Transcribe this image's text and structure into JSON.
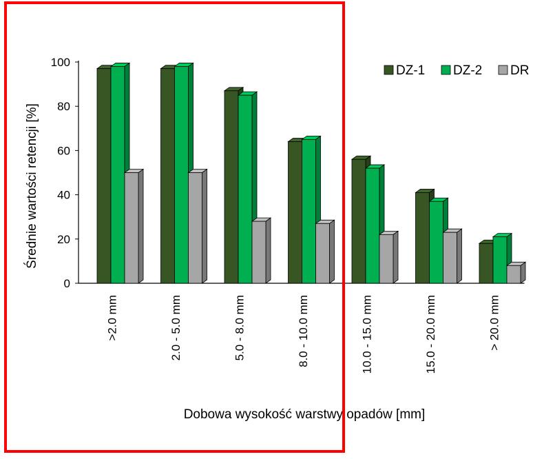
{
  "chart_data": {
    "type": "bar",
    "title": "",
    "xlabel": "Dobowa wysokość warstwy opadów [mm]",
    "ylabel": "Średnie  wartości  retencji [%]",
    "ylim": [
      0,
      100
    ],
    "yticks": [
      0,
      20,
      40,
      60,
      80,
      100
    ],
    "grid": false,
    "legend_position": "top-right",
    "categories": [
      ">2.0 mm",
      "2.0 - 5.0 mm",
      "5.0 - 8.0 mm",
      "8.0 - 10.0 mm",
      "10.0 - 15.0 mm",
      "15.0 - 20.0 mm",
      "> 20.0 mm"
    ],
    "series": [
      {
        "name": "DZ-1",
        "color": "#375623",
        "values": [
          97,
          97,
          87,
          64,
          56,
          41,
          18
        ]
      },
      {
        "name": "DZ-2",
        "color": "#00b050",
        "values": [
          98,
          98,
          85,
          65,
          52,
          37,
          21
        ]
      },
      {
        "name": "DR",
        "color": "#a6a6a6",
        "values": [
          50,
          50,
          28,
          27,
          22,
          23,
          8
        ]
      }
    ]
  },
  "annotation": {
    "highlight_color": "#ff0000"
  }
}
